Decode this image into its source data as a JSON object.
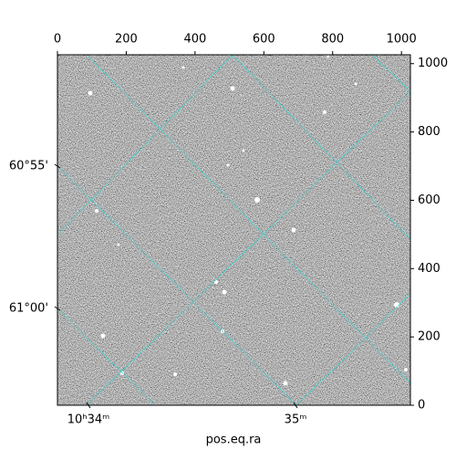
{
  "chart_data": {
    "type": "image",
    "xlabel": "pos.eq.ra",
    "xlim": [
      0,
      1026
    ],
    "ylim": [
      0,
      1026
    ],
    "xticks": [
      0,
      200,
      400,
      600,
      800,
      1000
    ],
    "yticks": [
      0,
      200,
      400,
      600,
      800,
      1000
    ],
    "grid_color": "#3fd0d0",
    "world_yticks": [
      "60°55'",
      "61°00'"
    ],
    "world_xticks": [
      "10ʰ34ᵐ",
      "35ᵐ"
    ]
  }
}
